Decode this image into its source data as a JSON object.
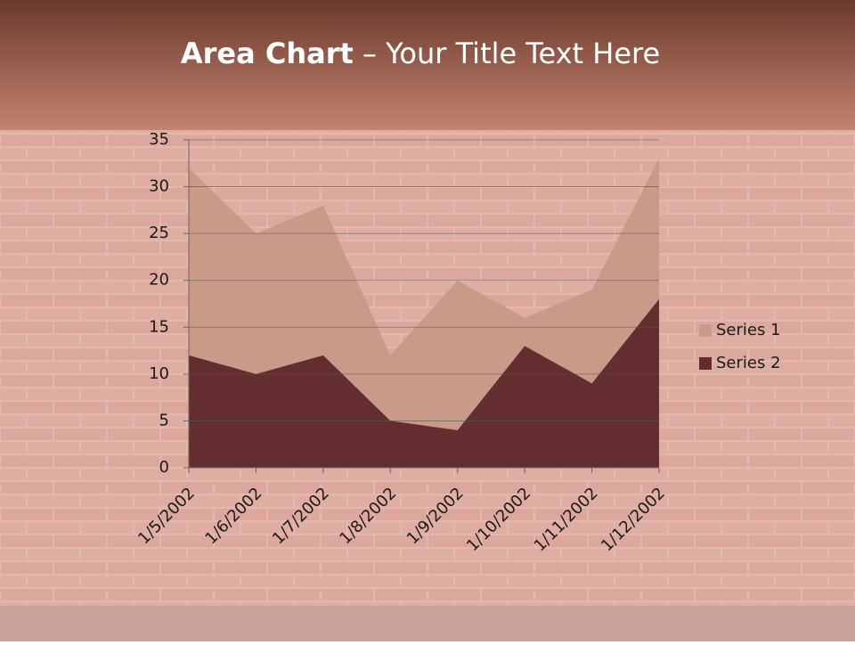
{
  "chart_data": {
    "type": "area",
    "title_parts": [
      "Area Chart",
      "– Your Title Text Here"
    ],
    "categories": [
      "1/5/2002",
      "1/6/2002",
      "1/7/2002",
      "1/8/2002",
      "1/9/2002",
      "1/10/2002",
      "1/11/2002",
      "1/12/2002"
    ],
    "series": [
      {
        "name": "Series 1",
        "color": "#c99a88",
        "values": [
          32,
          25,
          28,
          12,
          20,
          16,
          19,
          33
        ]
      },
      {
        "name": "Series 2",
        "color": "#642d30",
        "values": [
          12,
          10,
          12,
          5,
          4,
          13,
          9,
          18
        ]
      }
    ],
    "ylim": [
      0,
      35
    ],
    "yticks": [
      0,
      5,
      10,
      15,
      20,
      25,
      30,
      35
    ],
    "grid": true,
    "legend": "right"
  }
}
